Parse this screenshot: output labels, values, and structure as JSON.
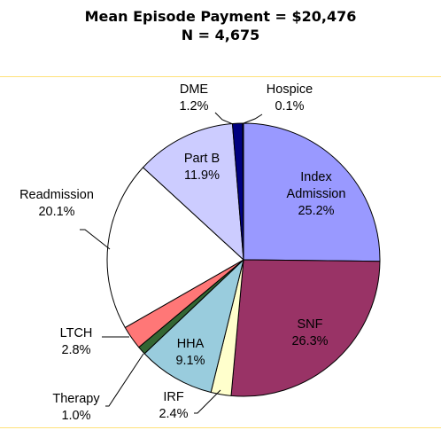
{
  "chart_data": {
    "type": "pie",
    "title": "Mean Episode Payment = $20,476",
    "subtitle": "N = 4,675",
    "slices": [
      {
        "label": "Index\nAdmission",
        "value": 25.2,
        "value_label": "25.2%",
        "color": "#9999ff"
      },
      {
        "label": "SNF",
        "value": 26.3,
        "value_label": "26.3%",
        "color": "#993366"
      },
      {
        "label": "IRF",
        "value": 2.4,
        "value_label": "2.4%",
        "color": "#ffffcc"
      },
      {
        "label": "HHA",
        "value": 9.1,
        "value_label": "9.1%",
        "color": "#99ccdd"
      },
      {
        "label": "Therapy",
        "value": 1.0,
        "value_label": "1.0%",
        "color": "#336633"
      },
      {
        "label": "LTCH",
        "value": 2.8,
        "value_label": "2.8%",
        "color": "#ff7777"
      },
      {
        "label": "Readmission",
        "value": 20.1,
        "value_label": "20.1%",
        "color": "#ffffff"
      },
      {
        "label": "Part B",
        "value": 11.9,
        "value_label": "11.9%",
        "color": "#ccccff"
      },
      {
        "label": "DME",
        "value": 1.2,
        "value_label": "1.2%",
        "color": "#000080"
      },
      {
        "label": "Hospice",
        "value": 0.1,
        "value_label": "0.1%",
        "color": "#3333cc"
      }
    ],
    "start": "12 o'clock",
    "direction": "clockwise",
    "border_color": "#ffe27a"
  }
}
